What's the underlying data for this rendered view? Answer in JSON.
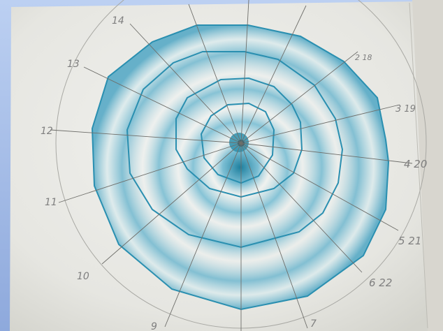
{
  "image": {
    "subject": "hand-drawn-spiral-on-paper",
    "ink_color": "#2a8fb0",
    "shading_color": "#59aecb",
    "paper_color": "#efefec"
  },
  "labels": {
    "l13": "13",
    "l14": "14",
    "l12": "12",
    "l11": "11",
    "l10": "10",
    "l9": "9",
    "l7": "7",
    "l18": "2 18",
    "l19": "3 19",
    "l20": "4 20",
    "l21": "5 21",
    "l22": "6 22"
  }
}
